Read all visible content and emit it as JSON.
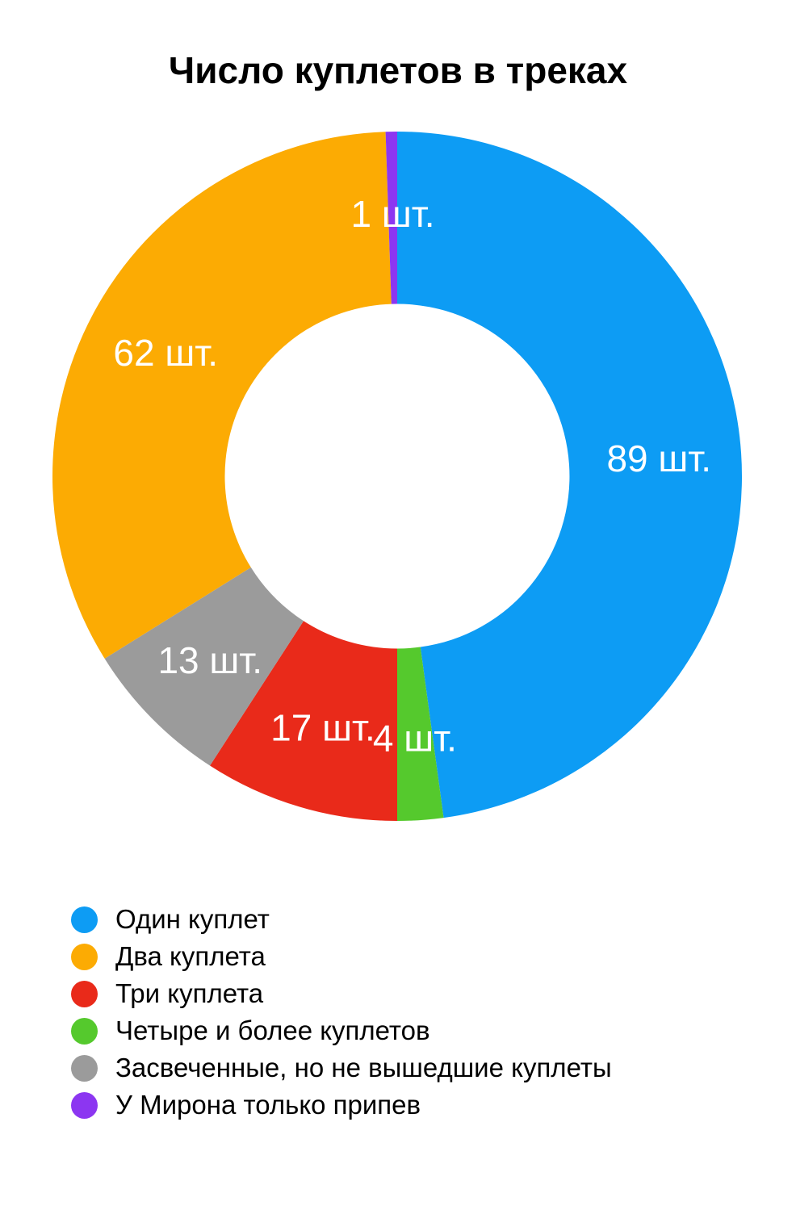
{
  "page": {
    "background": "#ffffff"
  },
  "title": "Число куплетов в треках",
  "chart_data": {
    "type": "pie",
    "subtype": "donut",
    "title": "Число куплетов в треках",
    "unit": "шт.",
    "total": 186,
    "start_angle_deg": 0,
    "direction": "clockwise",
    "donut_hole_ratio": 0.5,
    "label_color": "#ffffff",
    "legend_position": "bottom-left",
    "categories": [
      "Один куплет",
      "Два куплета",
      "Три куплета",
      "Четыре и более куплетов",
      "Засвеченные, но не вышедшие куплеты",
      "У Мирона только припев"
    ],
    "values": [
      89,
      62,
      17,
      4,
      13,
      1
    ],
    "segments": [
      {
        "name": "Один куплет",
        "value": 89,
        "label": "89 шт.",
        "color": "#0D9CF4"
      },
      {
        "name": "Два куплета",
        "value": 62,
        "label": "62 шт.",
        "color": "#FCAB03"
      },
      {
        "name": "Три куплета",
        "value": 17,
        "label": "17 шт.",
        "color": "#E92A1A"
      },
      {
        "name": "Четыре и более куплетов",
        "value": 4,
        "label": "4 шт.",
        "color": "#55C92D"
      },
      {
        "name": "Засвеченные, но не вышедшие куплеты",
        "value": 13,
        "label": "13 шт.",
        "color": "#9B9B9B"
      },
      {
        "name": "У Мирона только припев",
        "value": 1,
        "label": "1 шт.",
        "color": "#8C36F1"
      }
    ],
    "draw_order": [
      0,
      3,
      2,
      4,
      1,
      5
    ]
  },
  "legend": {
    "items": [
      {
        "label": "Один куплет",
        "color": "#0D9CF4"
      },
      {
        "label": "Два куплета",
        "color": "#FCAB03"
      },
      {
        "label": "Три куплета",
        "color": "#E92A1A"
      },
      {
        "label": "Четыре и более куплетов",
        "color": "#55C92D"
      },
      {
        "label": "Засвеченные, но не вышедшие куплеты",
        "color": "#9B9B9B"
      },
      {
        "label": "У Мирона только припев",
        "color": "#8C36F1"
      }
    ]
  }
}
